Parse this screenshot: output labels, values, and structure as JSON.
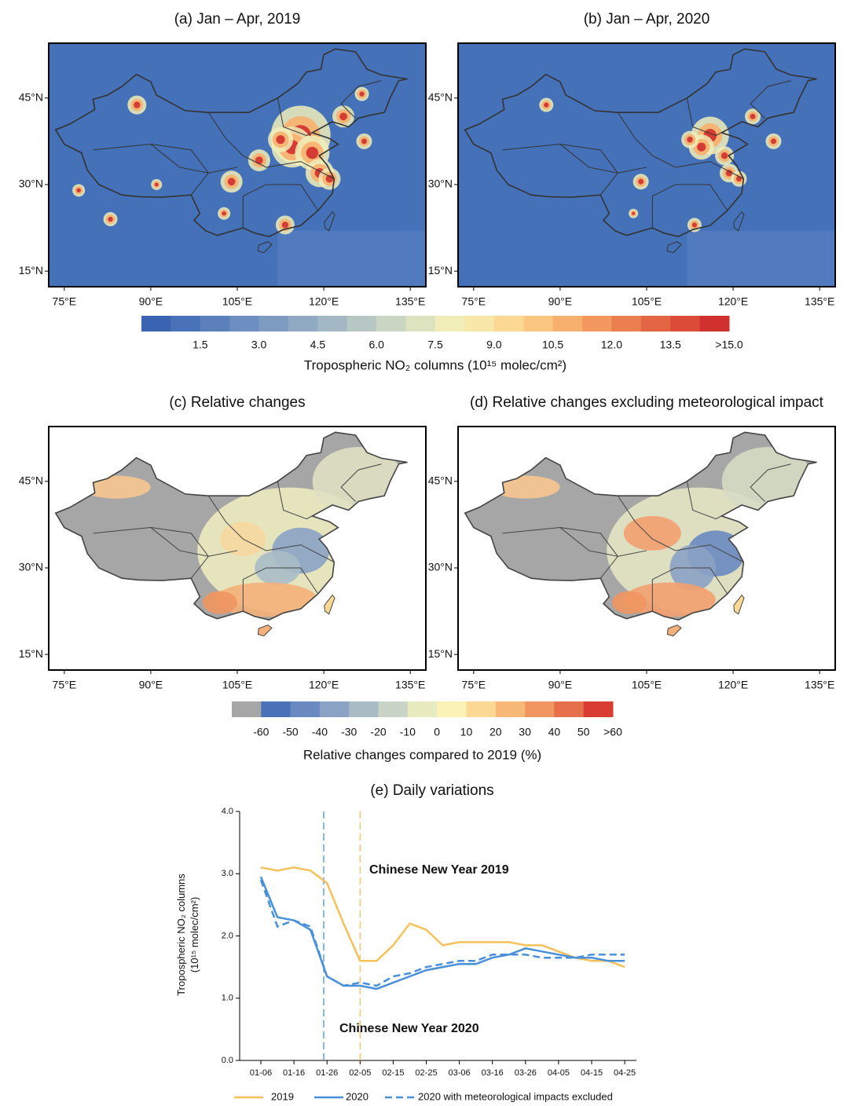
{
  "chart_data": [
    {
      "type": "map",
      "title": "(a) Jan – Apr, 2019",
      "background": "#4471b8",
      "xlim": [
        72.3,
        137.7
      ],
      "ylim": [
        12.3,
        54.5
      ],
      "xticks": [
        {
          "value": 75,
          "label": "75°E"
        },
        {
          "value": 90,
          "label": "90°E"
        },
        {
          "value": 105,
          "label": "105°E"
        },
        {
          "value": 120,
          "label": "120°E"
        },
        {
          "value": 135,
          "label": "135°E"
        }
      ],
      "yticks": [
        {
          "value": 15,
          "label": "15°N"
        },
        {
          "value": 30,
          "label": "30°N"
        },
        {
          "value": 45,
          "label": "45°N"
        }
      ]
    },
    {
      "type": "map",
      "title": "(b) Jan – Apr, 2020",
      "background": "#4471b8",
      "xlim": [
        72.3,
        137.7
      ],
      "ylim": [
        12.3,
        54.5
      ],
      "xticks": [
        {
          "value": 75,
          "label": "75°E"
        },
        {
          "value": 90,
          "label": "90°E"
        },
        {
          "value": 105,
          "label": "105°E"
        },
        {
          "value": 120,
          "label": "120°E"
        },
        {
          "value": 135,
          "label": "135°E"
        }
      ],
      "yticks": [
        {
          "value": 15,
          "label": "15°N"
        },
        {
          "value": 30,
          "label": "30°N"
        },
        {
          "value": 45,
          "label": "45°N"
        }
      ]
    },
    {
      "type": "colorbar",
      "title": "Tropospheric NO₂ columns (10¹⁵ molec/cm²)",
      "xlim": [
        0,
        15
      ],
      "colors": [
        "#3a64b2",
        "#4a72b8",
        "#5b80bc",
        "#6c8ec0",
        "#7e9cc2",
        "#90aac4",
        "#a3b8c4",
        "#b7c7c4",
        "#cad5c2",
        "#dde2bf",
        "#f0edb8",
        "#f8e8a8",
        "#fbd994",
        "#fbc680",
        "#f8b06e",
        "#f3985e",
        "#ec7f50",
        "#e36544",
        "#da4b38",
        "#d0302e"
      ],
      "xticks": [
        1.5,
        {
          "value": 3,
          "label": "3.0"
        },
        4.5,
        {
          "value": 6,
          "label": "6.0"
        },
        7.5,
        {
          "value": 9,
          "label": "9.0"
        },
        10.5,
        {
          "value": 12,
          "label": "12.0"
        },
        13.5,
        {
          "value": 15,
          "label": ">15.0"
        }
      ]
    },
    {
      "type": "map",
      "title": "(c) Relative changes",
      "background": "#ffffff",
      "xlim": [
        72.3,
        137.7
      ],
      "ylim": [
        12.3,
        54.5
      ],
      "xticks": [
        {
          "value": 75,
          "label": "75°E"
        },
        {
          "value": 90,
          "label": "90°E"
        },
        {
          "value": 105,
          "label": "105°E"
        },
        {
          "value": 120,
          "label": "120°E"
        },
        {
          "value": 135,
          "label": "135°E"
        }
      ],
      "yticks": [
        {
          "value": 15,
          "label": "15°N"
        },
        {
          "value": 30,
          "label": "30°N"
        },
        {
          "value": 45,
          "label": "45°N"
        }
      ]
    },
    {
      "type": "map",
      "title": "(d) Relative changes excluding meteorological impact",
      "background": "#ffffff",
      "xlim": [
        72.3,
        137.7
      ],
      "ylim": [
        12.3,
        54.5
      ],
      "xticks": [
        {
          "value": 75,
          "label": "75°E"
        },
        {
          "value": 90,
          "label": "90°E"
        },
        {
          "value": 105,
          "label": "105°E"
        },
        {
          "value": 120,
          "label": "120°E"
        },
        {
          "value": 135,
          "label": "135°E"
        }
      ],
      "yticks": [
        {
          "value": 15,
          "label": "15°N"
        },
        {
          "value": 30,
          "label": "30°N"
        },
        {
          "value": 45,
          "label": "45°N"
        }
      ]
    },
    {
      "type": "colorbar",
      "title": "Relative changes compared to 2019 (%)",
      "xlim": [
        -70,
        60
      ],
      "colors": [
        "#a6a6a6",
        "#4a72b8",
        "#6a89c0",
        "#8aa2c4",
        "#a9bcc6",
        "#c9d4c6",
        "#e8ebbe",
        "#fbf3b5",
        "#fbd994",
        "#f8b978",
        "#f19661",
        "#e6704b",
        "#d93c30"
      ],
      "xticks": [
        -60,
        -50,
        -40,
        -30,
        -20,
        -10,
        0,
        10,
        20,
        30,
        40,
        50,
        {
          "value": 60,
          "label": ">60"
        }
      ]
    },
    {
      "type": "line",
      "title": "(e) Daily variations",
      "ylabel": [
        "Tropospheric NO₂ columns",
        "(10¹⁵ molec/cm²)"
      ],
      "categories": [
        "01-06",
        null,
        "01-16",
        null,
        "01-26",
        null,
        "02-05",
        null,
        "02-15",
        null,
        "02-25",
        null,
        "03-06",
        null,
        "03-16",
        null,
        "03-26",
        null,
        "04-05",
        null,
        "04-15",
        null,
        "04-25"
      ],
      "ylim": [
        0,
        4
      ],
      "yticks": [
        {
          "value": 0,
          "label": "0.0"
        },
        {
          "value": 1,
          "label": "1.0"
        },
        {
          "value": 2,
          "label": "2.0"
        },
        {
          "value": 3,
          "label": "3.0"
        },
        {
          "value": 4,
          "label": "4.0"
        }
      ],
      "series": [
        {
          "name": "2019",
          "color": "#f5c15a",
          "dash": false,
          "values": [
            3.1,
            3.05,
            3.1,
            3.05,
            2.85,
            2.2,
            1.6,
            1.6,
            1.85,
            2.2,
            2.1,
            1.85,
            1.9,
            1.9,
            1.9,
            1.9,
            1.85,
            1.85,
            1.75,
            1.65,
            1.6,
            1.6,
            1.5
          ]
        },
        {
          "name": "2020",
          "color": "#4a90d9",
          "dash": false,
          "values": [
            2.95,
            2.3,
            2.25,
            2.1,
            1.35,
            1.2,
            1.2,
            1.15,
            1.25,
            1.35,
            1.45,
            1.5,
            1.55,
            1.55,
            1.65,
            1.7,
            1.8,
            1.75,
            1.7,
            1.65,
            1.65,
            1.6,
            1.6
          ]
        },
        {
          "name": "2020 with meteorological impacts excluded",
          "color": "#4a90d9",
          "dash": true,
          "values": [
            2.9,
            2.15,
            2.25,
            2.15,
            1.35,
            1.2,
            1.25,
            1.2,
            1.35,
            1.4,
            1.5,
            1.55,
            1.6,
            1.6,
            1.7,
            1.7,
            1.7,
            1.65,
            1.65,
            1.65,
            1.7,
            1.7,
            1.7
          ]
        }
      ],
      "annotations": [
        {
          "text": "Chinese New Year 2019",
          "color": "#f5c15a"
        },
        {
          "text": "Chinese New Year 2020",
          "color": "#4a90d9"
        }
      ]
    }
  ]
}
